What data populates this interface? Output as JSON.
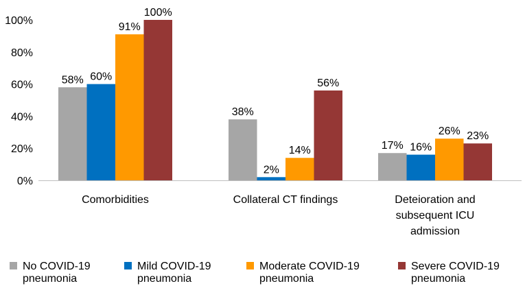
{
  "chart_data": {
    "type": "bar",
    "title": "",
    "xlabel": "",
    "ylabel": "",
    "ylim": [
      0,
      100
    ],
    "yticks": [
      "0%",
      "20%",
      "40%",
      "60%",
      "80%",
      "100%"
    ],
    "ytick_values": [
      0,
      20,
      40,
      60,
      80,
      100
    ],
    "grid": false,
    "legend_position": "bottom",
    "categories": [
      [
        "Comorbidities"
      ],
      [
        "Collateral CT findings"
      ],
      [
        "Deteioration and",
        "subsequent ICU",
        "admission"
      ]
    ],
    "series": [
      {
        "name": [
          "No COVID-19",
          "pneumonia"
        ],
        "color": "#a6a6a6",
        "values": [
          58,
          38,
          17
        ],
        "labels": [
          "58%",
          "38%",
          "17%"
        ]
      },
      {
        "name": [
          "Mild COVID-19",
          "pneumonia"
        ],
        "color": "#0070c0",
        "values": [
          60,
          2,
          16
        ],
        "labels": [
          "60%",
          "2%",
          "16%"
        ]
      },
      {
        "name": [
          "Moderate COVID-19",
          "pneumonia"
        ],
        "color": "#ff9900",
        "values": [
          91,
          14,
          26
        ],
        "labels": [
          "91%",
          "14%",
          "26%"
        ]
      },
      {
        "name": [
          "Severe COVID-19",
          "pneumonia"
        ],
        "color": "#953735",
        "values": [
          100,
          56,
          23
        ],
        "labels": [
          "100%",
          "56%",
          "23%"
        ]
      }
    ]
  }
}
